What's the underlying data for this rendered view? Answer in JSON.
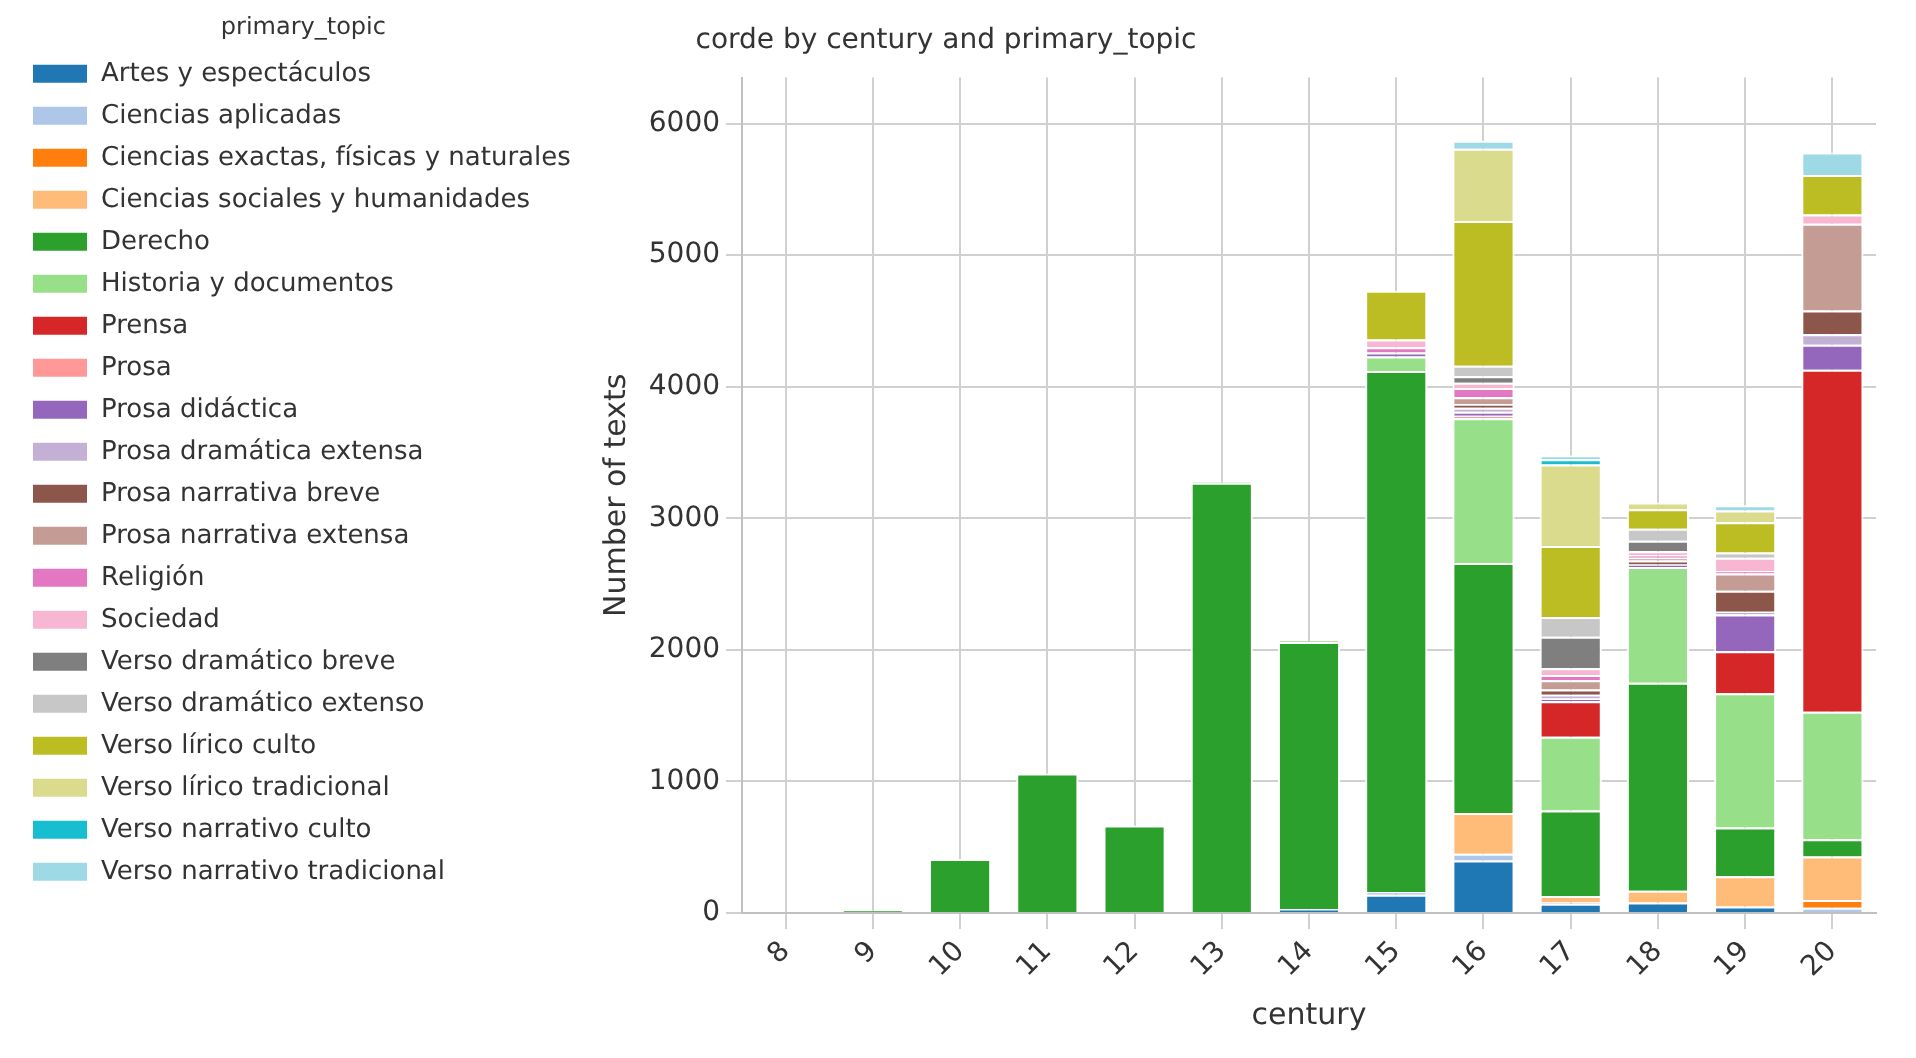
{
  "chart_data": {
    "type": "bar",
    "title": "corde by century and primary_topic",
    "xlabel": "century",
    "ylabel": "Number of texts",
    "legend_title": "primary_topic",
    "stacked": true,
    "grid": true,
    "legend": "left",
    "categories": [
      "8",
      "9",
      "10",
      "11",
      "12",
      "13",
      "14",
      "15",
      "16",
      "17",
      "18",
      "19",
      "20"
    ],
    "ylim": [
      0,
      6350
    ],
    "yticks": [
      0,
      1000,
      2000,
      3000,
      4000,
      5000,
      6000
    ],
    "series": [
      {
        "name": "Artes y espectáculos",
        "color": "#1f77b4",
        "values": [
          0,
          0,
          0,
          0,
          0,
          0,
          30,
          140,
          400,
          70,
          80,
          50,
          0
        ]
      },
      {
        "name": "Ciencias aplicadas",
        "color": "#aec7e8",
        "values": [
          0,
          0,
          0,
          0,
          0,
          0,
          0,
          20,
          50,
          10,
          0,
          0,
          40
        ]
      },
      {
        "name": "Ciencias exactas, físicas y naturales",
        "color": "#ff7f0e",
        "values": [
          0,
          0,
          0,
          0,
          0,
          0,
          0,
          0,
          0,
          0,
          0,
          0,
          60
        ]
      },
      {
        "name": "Ciencias sociales y humanidades",
        "color": "#ffbb78",
        "values": [
          0,
          0,
          0,
          0,
          0,
          0,
          0,
          0,
          310,
          50,
          90,
          230,
          330
        ]
      },
      {
        "name": "Derecho",
        "color": "#2ca02c",
        "values": [
          10,
          20,
          410,
          1060,
          665,
          3270,
          2030,
          3960,
          1900,
          650,
          1580,
          370,
          130
        ]
      },
      {
        "name": "Historia y documentos",
        "color": "#98df8a",
        "values": [
          0,
          0,
          0,
          0,
          0,
          10,
          10,
          110,
          1100,
          560,
          880,
          1020,
          970
        ]
      },
      {
        "name": "Prensa",
        "color": "#d62728",
        "values": [
          0,
          0,
          0,
          0,
          0,
          0,
          0,
          0,
          0,
          270,
          0,
          320,
          2600
        ]
      },
      {
        "name": "Prosa",
        "color": "#ff9896",
        "values": [
          0,
          0,
          0,
          0,
          0,
          0,
          0,
          0,
          20,
          0,
          0,
          0,
          0
        ]
      },
      {
        "name": "Prosa didáctica",
        "color": "#9467bd",
        "values": [
          0,
          0,
          0,
          0,
          0,
          0,
          0,
          30,
          30,
          20,
          20,
          280,
          190
        ]
      },
      {
        "name": "Prosa dramática extensa",
        "color": "#c5b0d5",
        "values": [
          0,
          0,
          0,
          0,
          0,
          0,
          0,
          0,
          30,
          30,
          0,
          20,
          80
        ]
      },
      {
        "name": "Prosa narrativa breve",
        "color": "#8c564b",
        "values": [
          0,
          0,
          0,
          0,
          0,
          0,
          0,
          0,
          30,
          40,
          30,
          160,
          180
        ]
      },
      {
        "name": "Prosa narrativa extensa",
        "color": "#c49c94",
        "values": [
          0,
          0,
          0,
          0,
          0,
          0,
          0,
          0,
          50,
          70,
          20,
          130,
          660
        ]
      },
      {
        "name": "Religión",
        "color": "#e377c2",
        "values": [
          0,
          0,
          0,
          0,
          0,
          0,
          0,
          40,
          70,
          40,
          20,
          20,
          0
        ]
      },
      {
        "name": "Sociedad",
        "color": "#f7b6d2",
        "values": [
          0,
          0,
          0,
          0,
          0,
          0,
          0,
          60,
          40,
          50,
          30,
          100,
          70
        ]
      },
      {
        "name": "Verso dramático breve",
        "color": "#7f7f7f",
        "values": [
          0,
          0,
          0,
          0,
          0,
          0,
          0,
          0,
          50,
          240,
          80,
          0,
          0
        ]
      },
      {
        "name": "Verso dramático extenso",
        "color": "#c7c7c7",
        "values": [
          0,
          0,
          0,
          0,
          0,
          0,
          0,
          0,
          80,
          150,
          90,
          40,
          0
        ]
      },
      {
        "name": "Verso lírico culto",
        "color": "#bcbd22",
        "values": [
          0,
          0,
          0,
          0,
          0,
          0,
          0,
          370,
          1100,
          540,
          150,
          230,
          300
        ]
      },
      {
        "name": "Verso lírico tradicional",
        "color": "#dbdb8d",
        "values": [
          0,
          0,
          0,
          0,
          0,
          0,
          0,
          0,
          550,
          620,
          50,
          90,
          0
        ]
      },
      {
        "name": "Verso narrativo culto",
        "color": "#17becf",
        "values": [
          0,
          0,
          0,
          0,
          0,
          0,
          0,
          0,
          0,
          40,
          0,
          0,
          0
        ]
      },
      {
        "name": "Verso narrativo tradicional",
        "color": "#9edae5",
        "values": [
          0,
          0,
          0,
          0,
          0,
          0,
          0,
          0,
          60,
          30,
          0,
          40,
          170
        ]
      }
    ]
  }
}
